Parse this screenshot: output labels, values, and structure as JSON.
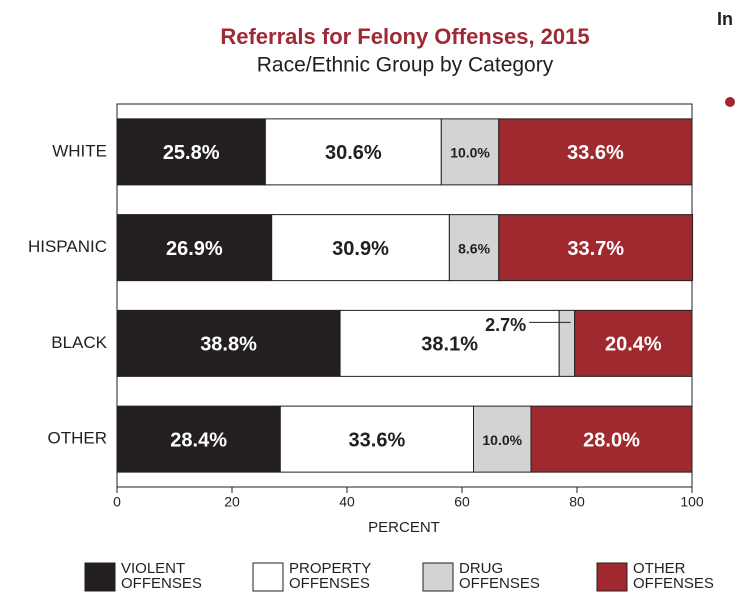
{
  "side_heading": "In",
  "chart_data": {
    "type": "stacked_bar_horizontal",
    "title": "Referrals for Felony Offenses, 2015",
    "subtitle": "Race/Ethnic Group by Category",
    "xlabel": "PERCENT",
    "categories": [
      "WHITE",
      "HISPANIC",
      "BLACK",
      "OTHER"
    ],
    "series": [
      {
        "name": "VIOLENT OFFENSES",
        "color": "#231f20",
        "values": [
          25.8,
          26.9,
          38.8,
          28.4
        ],
        "value_labels": [
          "25.8%",
          "26.9%",
          "38.8%",
          "28.4%"
        ]
      },
      {
        "name": "PROPERTY OFFENSES",
        "color": "#ffffff",
        "values": [
          30.6,
          30.9,
          38.1,
          33.6
        ],
        "value_labels": [
          "30.6%",
          "30.9%",
          "38.1%",
          "33.6%"
        ]
      },
      {
        "name": "DRUG OFFENSES",
        "color": "#d1d3d4",
        "values": [
          10.0,
          8.6,
          2.7,
          10.0
        ],
        "value_labels": [
          "10.0%",
          "8.6%",
          "2.7%",
          "10.0%"
        ]
      },
      {
        "name": "OTHER OFFENSES",
        "color": "#a0282f",
        "values": [
          33.6,
          33.7,
          20.4,
          28.0
        ],
        "value_labels": [
          "33.6%",
          "33.7%",
          "20.4%",
          "28.0%"
        ]
      }
    ],
    "xlim": [
      0,
      100
    ],
    "xticks": [
      0,
      20,
      40,
      60,
      80,
      100
    ],
    "grid": false,
    "legend": "bottom"
  }
}
